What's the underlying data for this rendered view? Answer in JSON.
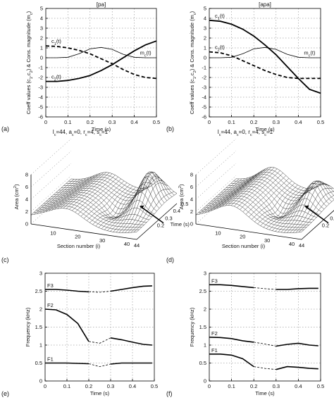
{
  "panel_letters": [
    "(a)",
    "(b)",
    "(c)",
    "(d)",
    "(e)",
    "(f)"
  ],
  "chart_data": [
    {
      "id": "a",
      "type": "line",
      "title": "[pa]",
      "xlabel": "Time (s)",
      "ylabel": "Coeff values (c_1,c_2) & Cons. magnitude (m_c)",
      "xlim": [
        0,
        0.5
      ],
      "ylim": [
        -6,
        5
      ],
      "grid": true,
      "xticks": [
        "0",
        "0.1",
        "0.2",
        "0.3",
        "0.4",
        "0.5"
      ],
      "yticks": [
        "-6",
        "-5",
        "-4",
        "-3",
        "-2",
        "-1",
        "0",
        "1",
        "2",
        "3",
        "4",
        "5"
      ],
      "series": [
        {
          "name": "c_1(t)",
          "style": "dashed-thick",
          "x": [
            0,
            0.05,
            0.1,
            0.15,
            0.2,
            0.25,
            0.3,
            0.35,
            0.4,
            0.45,
            0.5
          ],
          "y": [
            1.2,
            1.15,
            1.0,
            0.75,
            0.4,
            -0.1,
            -0.6,
            -1.2,
            -1.7,
            -2.0,
            -2.1
          ]
        },
        {
          "name": "c_2(t)",
          "style": "solid-thick",
          "x": [
            0,
            0.05,
            0.1,
            0.15,
            0.2,
            0.25,
            0.3,
            0.35,
            0.4,
            0.45,
            0.5
          ],
          "y": [
            -2.4,
            -2.4,
            -2.3,
            -2.1,
            -1.8,
            -1.3,
            -0.7,
            0.0,
            0.7,
            1.3,
            1.7
          ]
        },
        {
          "name": "m_c(t)",
          "style": "solid-thin",
          "x": [
            0,
            0.05,
            0.1,
            0.15,
            0.2,
            0.25,
            0.3,
            0.35,
            0.4,
            0.45,
            0.5
          ],
          "y": [
            0,
            0,
            0.05,
            0.4,
            0.9,
            1.05,
            0.85,
            0.35,
            0.05,
            0,
            0
          ]
        }
      ]
    },
    {
      "id": "b",
      "type": "line",
      "title": "[apa]",
      "xlabel": "Time (s)",
      "ylabel": "Coeff values (c_1,c_2) & Cons. magnitude (m_c)",
      "xlim": [
        0,
        0.5
      ],
      "ylim": [
        -6,
        5
      ],
      "grid": true,
      "xticks": [
        "0",
        "0.1",
        "0.2",
        "0.3",
        "0.4",
        "0.5"
      ],
      "yticks": [
        "-6",
        "-5",
        "-4",
        "-3",
        "-2",
        "-1",
        "0",
        "1",
        "2",
        "3",
        "4",
        "5"
      ],
      "series": [
        {
          "name": "c_1(t)",
          "style": "solid-thick",
          "x": [
            0,
            0.05,
            0.1,
            0.15,
            0.2,
            0.25,
            0.3,
            0.35,
            0.4,
            0.45,
            0.5
          ],
          "y": [
            3.8,
            3.7,
            3.4,
            2.9,
            2.2,
            1.3,
            0.3,
            -0.9,
            -2.1,
            -3.2,
            -3.6
          ]
        },
        {
          "name": "c_2(t)",
          "style": "dashed-thick",
          "x": [
            0,
            0.05,
            0.1,
            0.15,
            0.2,
            0.25,
            0.3,
            0.35,
            0.4,
            0.45,
            0.5
          ],
          "y": [
            0.6,
            0.5,
            0.2,
            -0.3,
            -0.8,
            -1.3,
            -1.7,
            -2.0,
            -2.1,
            -2.1,
            -2.1
          ]
        },
        {
          "name": "m_c(t)",
          "style": "solid-thin",
          "x": [
            0,
            0.05,
            0.1,
            0.15,
            0.2,
            0.25,
            0.3,
            0.35,
            0.4,
            0.45,
            0.5
          ],
          "y": [
            0,
            0,
            0.05,
            0.4,
            0.9,
            1.05,
            0.85,
            0.35,
            0.05,
            0,
            0
          ]
        }
      ]
    },
    {
      "id": "c",
      "type": "surface",
      "title": "l_c=44, a_c=0, r_c=4, s_c=1",
      "xlabel": "Section number (i)",
      "ylabel": "Time (s)",
      "zlabel": "Area (cm^2)",
      "xticks": [
        "10",
        "20",
        "30",
        "40",
        "44"
      ],
      "yticks": [
        "0.2",
        "0.3",
        "0.4",
        "0.5"
      ],
      "zticks": [
        "0",
        "2",
        "4",
        "6",
        "8"
      ]
    },
    {
      "id": "d",
      "type": "surface",
      "title": "l_c=44, a_c=0, r_c=4, s_c=1",
      "xlabel": "Section number (i)",
      "ylabel": "Time (s)",
      "zlabel": "Area (cm^2)",
      "xticks": [
        "10",
        "20",
        "30",
        "40",
        "44"
      ],
      "yticks": [
        "0.2",
        "0.3",
        "0.4",
        "0.5"
      ],
      "zticks": [
        "0",
        "2",
        "4",
        "6",
        "8"
      ]
    },
    {
      "id": "e",
      "type": "line",
      "xlabel": "Time (s)",
      "ylabel": "Frequency (kHz)",
      "xlim": [
        0,
        0.5
      ],
      "ylim": [
        0,
        3
      ],
      "grid": true,
      "xticks": [
        "0",
        "0.1",
        "0.2",
        "0.3",
        "0.4",
        "0.5"
      ],
      "yticks": [
        "0",
        "0.5",
        "1",
        "1.5",
        "2",
        "2.5",
        "3"
      ],
      "series": [
        {
          "name": "F3",
          "x": [
            0,
            0.05,
            0.1,
            0.15,
            0.2,
            0.25,
            0.3,
            0.35,
            0.4,
            0.45,
            0.49
          ],
          "y": [
            2.55,
            2.55,
            2.53,
            2.5,
            2.48,
            2.47,
            2.5,
            2.55,
            2.6,
            2.64,
            2.65
          ]
        },
        {
          "name": "F2",
          "x": [
            0,
            0.05,
            0.1,
            0.15,
            0.2,
            0.25,
            0.3,
            0.35,
            0.4,
            0.45,
            0.49
          ],
          "y": [
            2.0,
            1.98,
            1.85,
            1.6,
            1.1,
            1.05,
            1.2,
            1.15,
            1.08,
            1.02,
            1.0
          ]
        },
        {
          "name": "F1",
          "x": [
            0,
            0.05,
            0.1,
            0.15,
            0.2,
            0.25,
            0.3,
            0.35,
            0.4,
            0.45,
            0.49
          ],
          "y": [
            0.5,
            0.5,
            0.5,
            0.49,
            0.48,
            0.4,
            0.47,
            0.5,
            0.5,
            0.5,
            0.5
          ]
        }
      ]
    },
    {
      "id": "f",
      "type": "line",
      "xlabel": "Time (s)",
      "ylabel": "Frequency (kHz)",
      "xlim": [
        0,
        0.5
      ],
      "ylim": [
        0,
        3
      ],
      "grid": true,
      "xticks": [
        "0",
        "0.1",
        "0.2",
        "0.3",
        "0.4",
        "0.5"
      ],
      "yticks": [
        "0",
        "0.5",
        "1",
        "1.5",
        "2",
        "2.5",
        "3"
      ],
      "series": [
        {
          "name": "F3",
          "x": [
            0,
            0.05,
            0.1,
            0.15,
            0.2,
            0.25,
            0.3,
            0.35,
            0.4,
            0.45,
            0.49
          ],
          "y": [
            2.68,
            2.68,
            2.66,
            2.63,
            2.6,
            2.57,
            2.55,
            2.55,
            2.57,
            2.58,
            2.58
          ]
        },
        {
          "name": "F2",
          "x": [
            0,
            0.05,
            0.1,
            0.15,
            0.2,
            0.25,
            0.3,
            0.35,
            0.4,
            0.45,
            0.49
          ],
          "y": [
            1.22,
            1.21,
            1.18,
            1.12,
            1.08,
            1.03,
            0.97,
            1.02,
            1.05,
            1.0,
            0.98
          ]
        },
        {
          "name": "F1",
          "x": [
            0,
            0.05,
            0.1,
            0.15,
            0.2,
            0.25,
            0.3,
            0.35,
            0.4,
            0.45,
            0.49
          ],
          "y": [
            0.75,
            0.75,
            0.72,
            0.62,
            0.4,
            0.35,
            0.32,
            0.4,
            0.38,
            0.35,
            0.34
          ]
        }
      ]
    }
  ]
}
